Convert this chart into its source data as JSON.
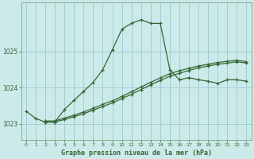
{
  "title": "",
  "xlabel": "Graphe pression niveau de la mer (hPa)",
  "ylabel": "",
  "bg_color": "#cceaea",
  "grid_color": "#99cccc",
  "line_color": "#336633",
  "spine_color": "#669966",
  "xlim": [
    -0.5,
    23.5
  ],
  "ylim": [
    1022.55,
    1026.35
  ],
  "yticks": [
    1023,
    1024,
    1025
  ],
  "xticks": [
    0,
    1,
    2,
    3,
    4,
    5,
    6,
    7,
    8,
    9,
    10,
    11,
    12,
    13,
    14,
    15,
    16,
    17,
    18,
    19,
    20,
    21,
    22,
    23
  ],
  "line1_x": [
    0,
    1,
    2,
    3,
    4,
    5,
    6,
    7,
    8,
    9,
    10,
    11,
    12,
    13,
    14,
    15,
    16,
    17,
    18,
    19,
    20,
    21,
    22,
    23
  ],
  "line1_y": [
    1023.35,
    1023.15,
    1023.05,
    1023.05,
    1023.4,
    1023.65,
    1023.9,
    1024.15,
    1024.5,
    1025.05,
    1025.62,
    1025.78,
    1025.88,
    1025.78,
    1025.78,
    1024.5,
    1024.22,
    1024.28,
    1024.22,
    1024.18,
    1024.12,
    1024.22,
    1024.22,
    1024.18
  ],
  "line2_x": [
    2,
    3,
    4,
    5,
    6,
    7,
    8,
    9,
    10,
    11,
    12,
    13,
    14,
    15,
    16,
    17,
    18,
    19,
    20,
    21,
    22,
    23
  ],
  "line2_y": [
    1023.05,
    1023.05,
    1023.12,
    1023.2,
    1023.28,
    1023.38,
    1023.48,
    1023.58,
    1023.7,
    1023.82,
    1023.95,
    1024.08,
    1024.2,
    1024.32,
    1024.4,
    1024.48,
    1024.55,
    1024.6,
    1024.65,
    1024.68,
    1024.72,
    1024.68
  ],
  "line3_x": [
    2,
    3,
    4,
    5,
    6,
    7,
    8,
    9,
    10,
    11,
    12,
    13,
    14,
    15,
    16,
    17,
    18,
    19,
    20,
    21,
    22,
    23
  ],
  "line3_y": [
    1023.08,
    1023.08,
    1023.16,
    1023.24,
    1023.33,
    1023.43,
    1023.54,
    1023.64,
    1023.76,
    1023.89,
    1024.02,
    1024.15,
    1024.27,
    1024.39,
    1024.47,
    1024.54,
    1024.6,
    1024.65,
    1024.7,
    1024.73,
    1024.76,
    1024.72
  ]
}
